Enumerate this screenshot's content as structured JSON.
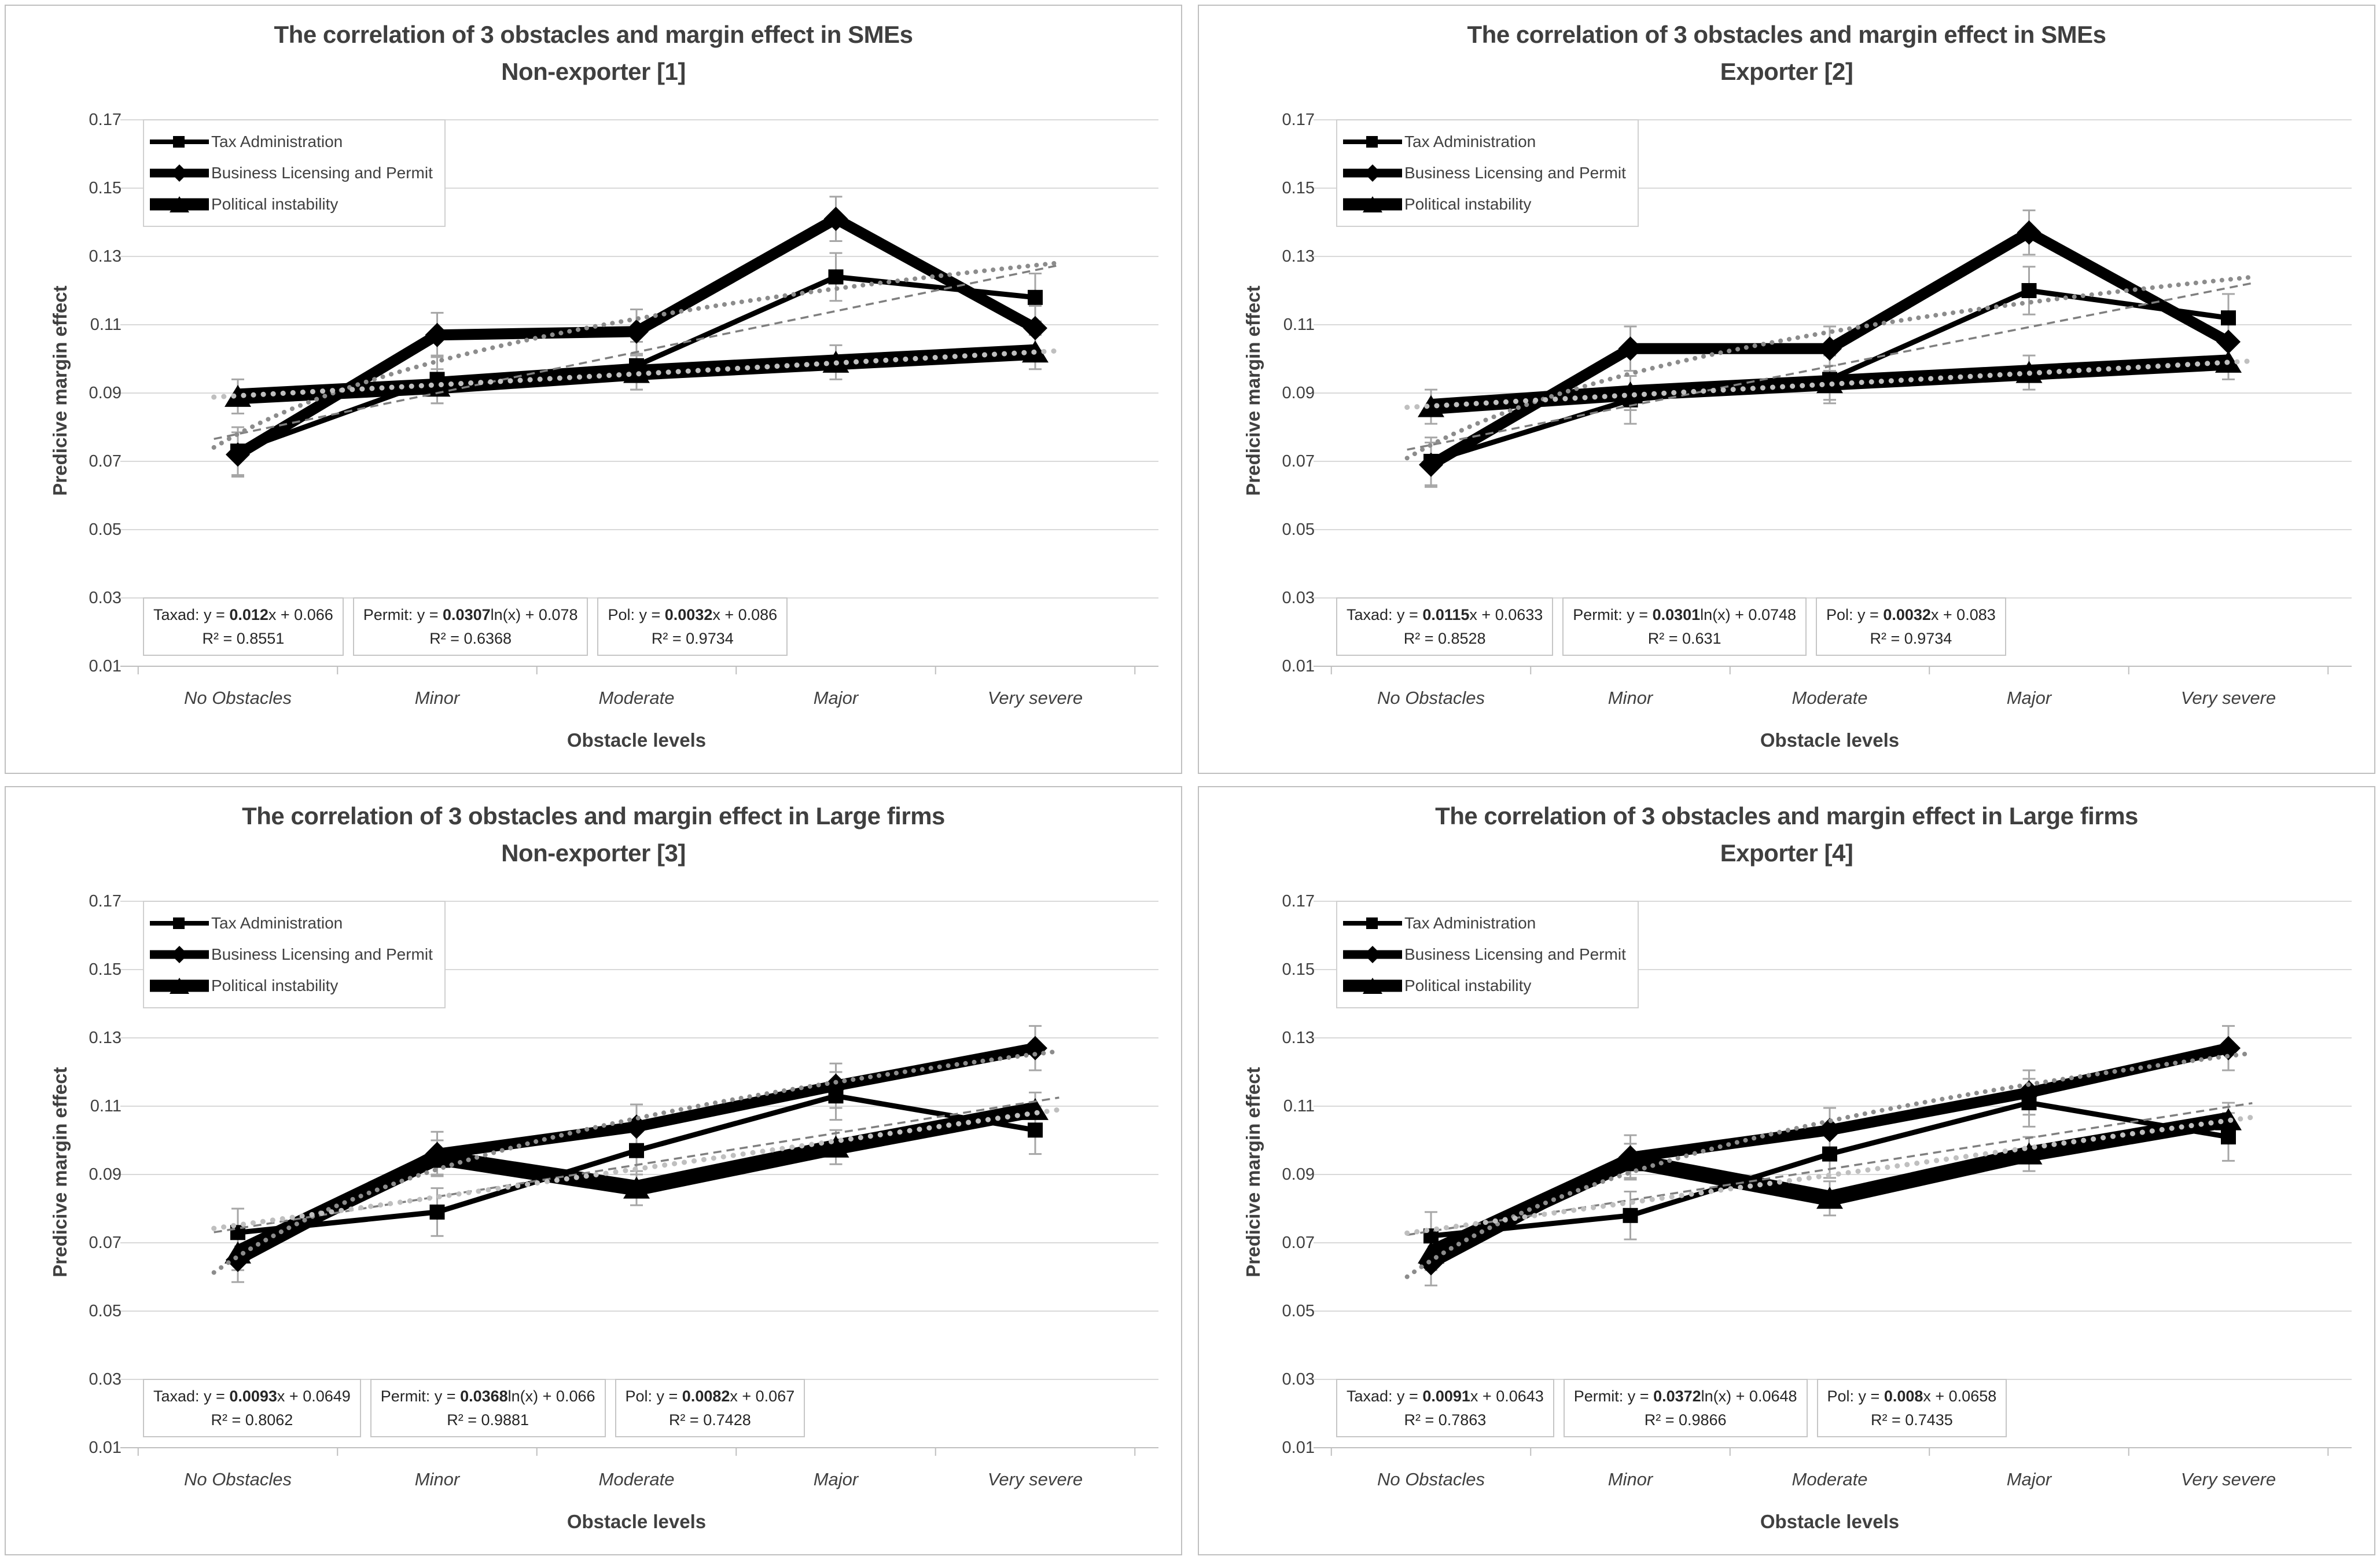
{
  "page": {
    "background": "#ffffff",
    "grid_color": "#d9d9d9",
    "series_color": "#000000",
    "trend_color": "#8c8c8c",
    "error_bar_color": "#a6a6a6"
  },
  "chart_data": [
    {
      "type": "line",
      "title_line1": "The correlation of 3 obstacles and margin effect in SMEs",
      "title_line2": "Non-exporter [1]",
      "xlabel": "Obstacle levels",
      "ylabel": "Predicive margin effect",
      "categories": [
        "No Obstacles",
        "Minor",
        "Moderate",
        "Major",
        "Very severe"
      ],
      "ytick_labels": [
        "0.17",
        "0.15",
        "0.13",
        "0.11",
        "0.09",
        "0.07",
        "0.05",
        "0.03",
        "0.01"
      ],
      "ylim": [
        0.01,
        0.17
      ],
      "grid": true,
      "legend_position": "top-left",
      "series": [
        {
          "name": "Tax Administration",
          "marker": "square",
          "values": [
            0.073,
            0.094,
            0.098,
            0.124,
            0.118
          ],
          "error_approx": 0.007,
          "trend": {
            "type": "linear",
            "a": 0.012,
            "b": 0.066
          },
          "equation": {
            "prefix": "Taxad: y = ",
            "coef": "0.012",
            "suffix": "x + 0.066",
            "r2": "R² = 0.8551"
          }
        },
        {
          "name": "Business Licensing and Permit",
          "marker": "diamond",
          "values": [
            0.072,
            0.107,
            0.108,
            0.141,
            0.109
          ],
          "error_approx": 0.0065,
          "trend": {
            "type": "log",
            "a": 0.0307,
            "b": 0.078
          },
          "equation": {
            "prefix": "Permit: y = ",
            "coef": "0.0307",
            "suffix": "ln(x) + 0.078",
            "r2": "R² = 0.6368"
          }
        },
        {
          "name": "Political instability",
          "marker": "triangle",
          "values": [
            0.089,
            0.092,
            0.096,
            0.099,
            0.102
          ],
          "error_approx": 0.005,
          "trend": {
            "type": "linear",
            "a": 0.0032,
            "b": 0.086
          },
          "equation": {
            "prefix": "Pol: y = ",
            "coef": "0.0032",
            "suffix": "x + 0.086",
            "r2": "R² = 0.9734"
          }
        }
      ]
    },
    {
      "type": "line",
      "title_line1": "The correlation of 3 obstacles and margin effect in SMEs",
      "title_line2": "Exporter [2]",
      "xlabel": "Obstacle levels",
      "ylabel": "Predicive margin effect",
      "categories": [
        "No Obstacles",
        "Minor",
        "Moderate",
        "Major",
        "Very severe"
      ],
      "ytick_labels": [
        "0.17",
        "0.15",
        "0.13",
        "0.11",
        "0.09",
        "0.07",
        "0.05",
        "0.03",
        "0.01"
      ],
      "ylim": [
        0.01,
        0.17
      ],
      "grid": true,
      "legend_position": "top-left",
      "series": [
        {
          "name": "Tax Administration",
          "marker": "square",
          "values": [
            0.07,
            0.088,
            0.094,
            0.12,
            0.112
          ],
          "error_approx": 0.007,
          "trend": {
            "type": "linear",
            "a": 0.0115,
            "b": 0.0633
          },
          "equation": {
            "prefix": "Taxad: y = ",
            "coef": "0.0115",
            "suffix": "x + 0.0633",
            "r2": "R² = 0.8528"
          }
        },
        {
          "name": "Business Licensing and Permit",
          "marker": "diamond",
          "values": [
            0.069,
            0.103,
            0.103,
            0.137,
            0.105
          ],
          "error_approx": 0.0065,
          "trend": {
            "type": "log",
            "a": 0.0301,
            "b": 0.0748
          },
          "equation": {
            "prefix": "Permit: y = ",
            "coef": "0.0301",
            "suffix": "ln(x) + 0.0748",
            "r2": "R² = 0.631"
          }
        },
        {
          "name": "Political instability",
          "marker": "triangle",
          "values": [
            0.086,
            0.09,
            0.093,
            0.096,
            0.099
          ],
          "error_approx": 0.005,
          "trend": {
            "type": "linear",
            "a": 0.0032,
            "b": 0.083
          },
          "equation": {
            "prefix": "Pol: y = ",
            "coef": "0.0032",
            "suffix": "x + 0.083",
            "r2": "R² = 0.9734"
          }
        }
      ]
    },
    {
      "type": "line",
      "title_line1": "The correlation of 3 obstacles and margin effect in Large firms",
      "title_line2": "Non-exporter [3]",
      "xlabel": "Obstacle levels",
      "ylabel": "Predicive margin effect",
      "categories": [
        "No Obstacles",
        "Minor",
        "Moderate",
        "Major",
        "Very severe"
      ],
      "ytick_labels": [
        "0.17",
        "0.15",
        "0.13",
        "0.11",
        "0.09",
        "0.07",
        "0.05",
        "0.03",
        "0.01"
      ],
      "ylim": [
        0.01,
        0.17
      ],
      "grid": true,
      "legend_position": "top-left",
      "series": [
        {
          "name": "Tax Administration",
          "marker": "square",
          "values": [
            0.073,
            0.079,
            0.097,
            0.113,
            0.103
          ],
          "error_approx": 0.007,
          "trend": {
            "type": "linear",
            "a": 0.0093,
            "b": 0.0649
          },
          "equation": {
            "prefix": "Taxad: y = ",
            "coef": "0.0093",
            "suffix": "x + 0.0649",
            "r2": "R² = 0.8062"
          }
        },
        {
          "name": "Business Licensing and Permit",
          "marker": "diamond",
          "values": [
            0.065,
            0.096,
            0.104,
            0.116,
            0.127
          ],
          "error_approx": 0.0065,
          "trend": {
            "type": "log",
            "a": 0.0368,
            "b": 0.066
          },
          "equation": {
            "prefix": "Permit: y = ",
            "coef": "0.0368",
            "suffix": "ln(x) + 0.066",
            "r2": "R² = 0.9881"
          }
        },
        {
          "name": "Political instability",
          "marker": "triangle",
          "values": [
            0.067,
            0.095,
            0.086,
            0.098,
            0.109
          ],
          "error_approx": 0.005,
          "trend": {
            "type": "linear",
            "a": 0.0082,
            "b": 0.067
          },
          "equation": {
            "prefix": "Pol: y = ",
            "coef": "0.0082",
            "suffix": "x + 0.067",
            "r2": "R² = 0.7428"
          }
        }
      ]
    },
    {
      "type": "line",
      "title_line1": "The correlation of 3 obstacles and margin effect in Large firms",
      "title_line2": "Exporter [4]",
      "xlabel": "Obstacle levels",
      "ylabel": "Predicive margin effect",
      "categories": [
        "No Obstacles",
        "Minor",
        "Moderate",
        "Major",
        "Very severe"
      ],
      "ytick_labels": [
        "0.17",
        "0.15",
        "0.13",
        "0.11",
        "0.09",
        "0.07",
        "0.05",
        "0.03",
        "0.01"
      ],
      "ylim": [
        0.01,
        0.17
      ],
      "grid": true,
      "legend_position": "top-left",
      "series": [
        {
          "name": "Tax Administration",
          "marker": "square",
          "values": [
            0.072,
            0.078,
            0.096,
            0.111,
            0.101
          ],
          "error_approx": 0.007,
          "trend": {
            "type": "linear",
            "a": 0.0091,
            "b": 0.0643
          },
          "equation": {
            "prefix": "Taxad: y = ",
            "coef": "0.0091",
            "suffix": "x + 0.0643",
            "r2": "R² = 0.7863"
          }
        },
        {
          "name": "Business Licensing and Permit",
          "marker": "diamond",
          "values": [
            0.064,
            0.095,
            0.103,
            0.114,
            0.127
          ],
          "error_approx": 0.0065,
          "trend": {
            "type": "log",
            "a": 0.0372,
            "b": 0.0648
          },
          "equation": {
            "prefix": "Permit: y = ",
            "coef": "0.0372",
            "suffix": "ln(x) + 0.0648",
            "r2": "R² = 0.9866"
          }
        },
        {
          "name": "Political instability",
          "marker": "triangle",
          "values": [
            0.067,
            0.094,
            0.083,
            0.096,
            0.106
          ],
          "error_approx": 0.005,
          "trend": {
            "type": "linear",
            "a": 0.008,
            "b": 0.0658
          },
          "equation": {
            "prefix": "Pol: y = ",
            "coef": "0.008",
            "suffix": "x + 0.0658",
            "r2": "R² = 0.7435"
          }
        }
      ]
    }
  ]
}
